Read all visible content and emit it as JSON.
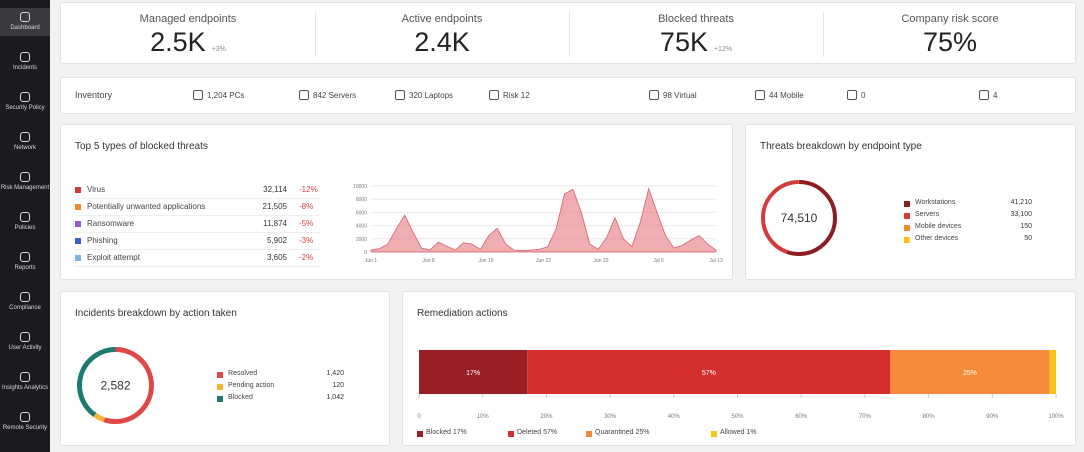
{
  "sidebar": {
    "items": [
      "Dashboard",
      "Incidents",
      "Security Policy",
      "Network",
      "Risk Management",
      "Policies",
      "Reports",
      "Compliance",
      "User Activity",
      "Insights Analytics",
      "Remote Security"
    ]
  },
  "kpis": [
    {
      "label": "Managed endpoints",
      "value": "2.5K",
      "delta": "+3%"
    },
    {
      "label": "Active endpoints",
      "value": "2.4K",
      "delta": ""
    },
    {
      "label": "Blocked threats",
      "value": "75K",
      "delta": "+12%"
    },
    {
      "label": "Company risk score",
      "value": "75%",
      "delta": ""
    }
  ],
  "inventory": {
    "label": "Inventory",
    "items": [
      "1,204 PCs",
      "842 Servers",
      "320 Laptops",
      "Risk 12",
      "98 Virtual",
      "44 Mobile",
      "0",
      "4"
    ]
  },
  "top_threats": {
    "title": "Top 5 types of blocked threats",
    "rows": [
      {
        "name": "Virus",
        "count": "32,114",
        "change": "-12%",
        "color": "#d63b3b"
      },
      {
        "name": "Potentially unwanted applications",
        "count": "21,505",
        "change": "-8%",
        "color": "#f08a2c"
      },
      {
        "name": "Ransomware",
        "count": "11,874",
        "change": "-5%",
        "color": "#9b59d0"
      },
      {
        "name": "Phishing",
        "count": "5,902",
        "change": "-3%",
        "color": "#3b5fc4"
      },
      {
        "name": "Exploit attempt",
        "count": "3,605",
        "change": "-2%",
        "color": "#7fb2e0"
      }
    ]
  },
  "threat_chart": {
    "type": "area",
    "color": "#e98a92",
    "values": [
      300,
      500,
      1200,
      3500,
      5600,
      3000,
      600,
      300,
      1500,
      900,
      300,
      1400,
      1200,
      400,
      2500,
      3600,
      1200,
      300,
      200,
      300,
      400,
      800,
      3500,
      8800,
      9500,
      6000,
      1200,
      400,
      2200,
      5200,
      2000,
      800,
      4500,
      9600,
      6000,
      2500,
      600,
      1000,
      1800,
      2500,
      1200,
      300
    ],
    "ylim": [
      0,
      10000
    ],
    "yticks": [
      0,
      2000,
      4000,
      6000,
      8000,
      10000
    ],
    "xlabels": [
      "Jun 1",
      "Jun 8",
      "Jun 15",
      "Jun 22",
      "Jun 29",
      "Jul 6",
      "Jul 13"
    ]
  },
  "threat_breakdown": {
    "title": "Threats breakdown by endpoint type",
    "total": "74,510",
    "slices": [
      {
        "name": "Workstations",
        "value": 41210,
        "label": "41,210",
        "color": "#8e1d22"
      },
      {
        "name": "Servers",
        "value": 33100,
        "label": "33,100",
        "color": "#d63b3b"
      },
      {
        "name": "Mobile devices",
        "value": 150,
        "label": "150",
        "color": "#f08a2c"
      },
      {
        "name": "Other devices",
        "value": 50,
        "label": "50",
        "color": "#f5c518"
      }
    ]
  },
  "incidents": {
    "title": "Incidents breakdown by action taken",
    "total": "2,582",
    "slices": [
      {
        "name": "Resolved",
        "value": 1420,
        "label": "1,420",
        "color": "#e04848"
      },
      {
        "name": "Pending action",
        "value": 120,
        "label": "120",
        "color": "#f5b335"
      },
      {
        "name": "Blocked",
        "value": 1042,
        "label": "1,042",
        "color": "#1f7a72"
      }
    ]
  },
  "remediation": {
    "title": "Remediation actions",
    "segments": [
      {
        "name": "Blocked 17%",
        "value": 17,
        "label": "17%",
        "color": "#9a1f24"
      },
      {
        "name": "Deleted 57%",
        "value": 57,
        "label": "57%",
        "color": "#d32f2f"
      },
      {
        "name": "Quarantined 25%",
        "value": 25,
        "label": "25%",
        "color": "#f58b3a"
      },
      {
        "name": "Allowed 1%",
        "value": 1,
        "label": "",
        "color": "#f5c518"
      }
    ],
    "xlim": [
      0,
      100
    ],
    "xticks": [
      {
        "value": 0,
        "label": "0"
      },
      {
        "value": 10,
        "label": "10%"
      },
      {
        "value": 20,
        "label": "20%"
      },
      {
        "value": 30,
        "label": "30%"
      },
      {
        "value": 40,
        "label": "40%"
      },
      {
        "value": 50,
        "label": "50%"
      },
      {
        "value": 60,
        "label": "60%"
      },
      {
        "value": 70,
        "label": "70%"
      },
      {
        "value": 80,
        "label": "80%"
      },
      {
        "value": 90,
        "label": "90%"
      },
      {
        "value": 100,
        "label": "100%"
      }
    ]
  }
}
